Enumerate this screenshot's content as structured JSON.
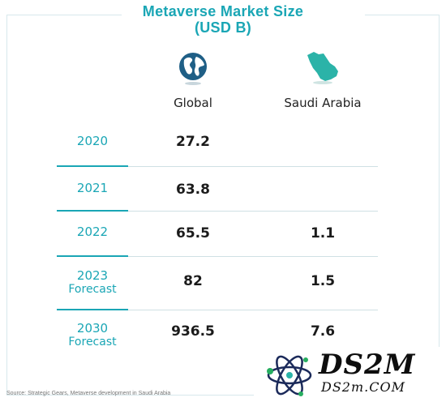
{
  "title_line1": "Metaverse Market Size",
  "title_line2": "(USD B)",
  "columns": [
    "Global",
    "Saudi Arabia"
  ],
  "icons": [
    "globe-icon",
    "saudi-arabia-map-icon"
  ],
  "rows": [
    {
      "year": "2020",
      "sub": "",
      "global": "27.2",
      "saudi": ""
    },
    {
      "year": "2021",
      "sub": "",
      "global": "63.8",
      "saudi": ""
    },
    {
      "year": "2022",
      "sub": "",
      "global": "65.5",
      "saudi": "1.1"
    },
    {
      "year": "2023",
      "sub": "Forecast",
      "global": "82",
      "saudi": "1.5"
    },
    {
      "year": "2030",
      "sub": "Forecast",
      "global": "936.5",
      "saudi": "7.6"
    }
  ],
  "source": "Source: Strategic Gears, Metaverse development in Saudi Arabia",
  "watermark": {
    "big": "DS2M",
    "small": "DS2m.COM"
  },
  "colors": {
    "accent": "#1aa6b5",
    "globe": "#1f5f86",
    "saudi_map": "#2bb3a8",
    "text": "#1b1b1b"
  },
  "chart_data": {
    "type": "table",
    "title": "Metaverse Market Size (USD B)",
    "columns": [
      "Global",
      "Saudi Arabia"
    ],
    "rows": [
      "2020",
      "2021",
      "2022",
      "2023 Forecast",
      "2030 Forecast"
    ],
    "values": [
      [
        27.2,
        null
      ],
      [
        63.8,
        null
      ],
      [
        65.5,
        1.1
      ],
      [
        82,
        1.5
      ],
      [
        936.5,
        7.6
      ]
    ]
  }
}
